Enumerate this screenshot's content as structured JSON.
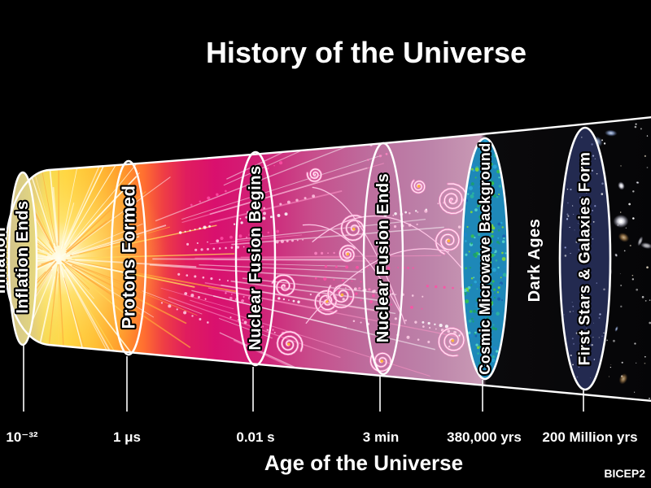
{
  "title": "History of the Universe",
  "axis": {
    "title": "Age of the Universe",
    "ticks": [
      "10⁻³²",
      "1 μs",
      "0.01 s",
      "3 min",
      "380,000 yrs",
      "200 Million yrs"
    ]
  },
  "credit": "BICEP2",
  "timeline": {
    "epochs": [
      {
        "label": "Inflation",
        "age": ""
      },
      {
        "label": "Inflation Ends",
        "age": "10⁻³²"
      },
      {
        "label": "Protons Formed",
        "age": "1 μs"
      },
      {
        "label": "Nuclear Fusion Begins",
        "age": "0.01 s"
      },
      {
        "label": "Nuclear Fusion Ends",
        "age": "3 min"
      },
      {
        "label": "Cosmic Microwave Background",
        "age": "380,000 yrs"
      },
      {
        "label": "Dark Ages",
        "age": ""
      },
      {
        "label": "First Stars & Galaxies Form",
        "age": "200 Million yrs"
      }
    ]
  },
  "colors": {
    "background": "#000000",
    "text": "#ffffff",
    "cap_tan": "#d8c98a",
    "burst_yellow": "#ffd83e",
    "hot_orange": "#ff9b2c",
    "plasma_magenta": "#d9106e",
    "plasma_mauve": "#bd6d9d",
    "cmb_teal": "#1e88b8",
    "cmb_green": "#7fd83a",
    "stars_navy": "#232a50",
    "outline_white": "#ffffff"
  }
}
